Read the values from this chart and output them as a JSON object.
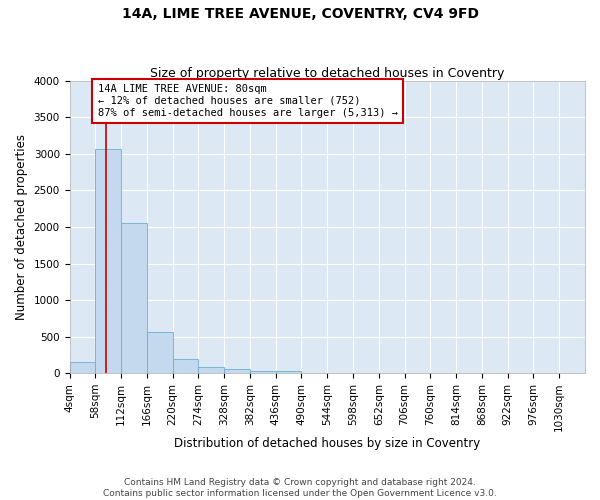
{
  "title_line1": "14A, LIME TREE AVENUE, COVENTRY, CV4 9FD",
  "title_line2": "Size of property relative to detached houses in Coventry",
  "xlabel": "Distribution of detached houses by size in Coventry",
  "ylabel": "Number of detached properties",
  "bin_edges": [
    4,
    58,
    112,
    166,
    220,
    274,
    328,
    382,
    436,
    490,
    544,
    598,
    652,
    706,
    760,
    814,
    868,
    922,
    976,
    1030,
    1084
  ],
  "bar_heights": [
    150,
    3070,
    2060,
    560,
    195,
    80,
    55,
    35,
    35,
    0,
    0,
    0,
    0,
    0,
    0,
    0,
    0,
    0,
    0,
    0
  ],
  "bar_color": "#c5d9ee",
  "bar_edge_color": "#6baed6",
  "background_color": "#dce8f3",
  "grid_color": "#ffffff",
  "property_line_x": 80,
  "property_line_color": "#cc0000",
  "annotation_text": "14A LIME TREE AVENUE: 80sqm\n← 12% of detached houses are smaller (752)\n87% of semi-detached houses are larger (5,313) →",
  "annotation_box_color": "#cc0000",
  "ylim": [
    0,
    4000
  ],
  "yticks": [
    0,
    500,
    1000,
    1500,
    2000,
    2500,
    3000,
    3500,
    4000
  ],
  "footer_line1": "Contains HM Land Registry data © Crown copyright and database right 2024.",
  "footer_line2": "Contains public sector information licensed under the Open Government Licence v3.0.",
  "title_fontsize": 10,
  "subtitle_fontsize": 9,
  "axis_label_fontsize": 8.5,
  "tick_fontsize": 7.5,
  "annotation_fontsize": 7.5,
  "footer_fontsize": 6.5,
  "fig_bg": "#ffffff"
}
